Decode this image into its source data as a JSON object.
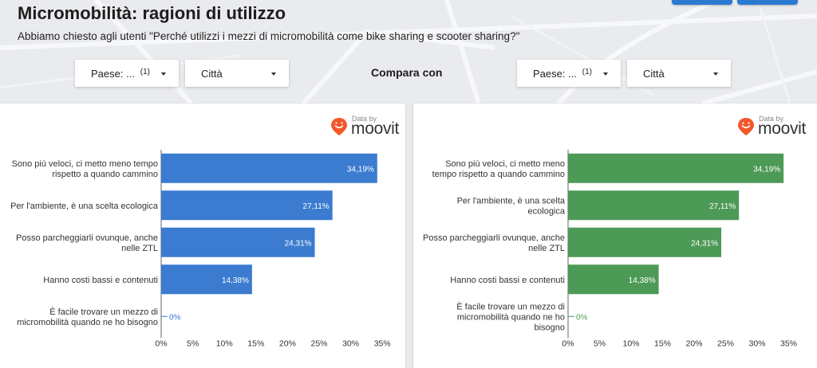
{
  "header": {
    "title": "Micromobilità: ragioni di utilizzo",
    "subtitle": "Abbiamo chiesto agli utenti \"Perché utilizzi i mezzi di micromobilità come bike sharing e scooter sharing?\""
  },
  "filters": {
    "left": {
      "country_label": "Paese: ...",
      "country_count": "(1)",
      "city_label": "Città"
    },
    "compare_label": "Compara con",
    "right": {
      "country_label": "Paese: ...",
      "country_count": "(1)",
      "city_label": "Città"
    }
  },
  "logo": {
    "data_by": "Data by",
    "brand": "moovit"
  },
  "colors": {
    "left_bar": "#3b7bd0",
    "right_bar": "#4d9a57",
    "logo_pin": "#f2592a"
  },
  "chart_data": [
    {
      "type": "bar",
      "orientation": "horizontal",
      "categories": [
        [
          "Sono più veloci, ci metto meno tempo",
          "rispetto a quando cammino"
        ],
        [
          "Per l'ambiente, è una scelta ecologica"
        ],
        [
          "Posso parcheggiarli ovunque, anche",
          "nelle ZTL"
        ],
        [
          "Hanno costi bassi e contenuti"
        ],
        [
          "È facile trovare un mezzo di",
          "micromobilità quando ne ho bisogno"
        ]
      ],
      "values": [
        34.19,
        27.11,
        24.31,
        14.38,
        0
      ],
      "data_labels": [
        "34,19%",
        "27,11%",
        "24,31%",
        "14,38%",
        "0%"
      ],
      "x_ticks": [
        "0%",
        "5%",
        "10%",
        "15%",
        "20%",
        "25%",
        "30%",
        "35%"
      ],
      "xlim": [
        0,
        35
      ],
      "color": "#3b7bd0"
    },
    {
      "type": "bar",
      "orientation": "horizontal",
      "categories": [
        [
          "Sono più veloci, ci metto meno",
          "tempo rispetto a quando cammino"
        ],
        [
          "Per l'ambiente, è una scelta",
          "ecologica"
        ],
        [
          "Posso parcheggiarli ovunque, anche",
          "nelle ZTL"
        ],
        [
          "Hanno costi bassi e contenuti"
        ],
        [
          "È facile trovare un mezzo di",
          "micromobilità quando ne ho",
          "bisogno"
        ]
      ],
      "values": [
        34.19,
        27.11,
        24.31,
        14.38,
        0
      ],
      "data_labels": [
        "34,19%",
        "27,11%",
        "24,31%",
        "14,38%",
        "0%"
      ],
      "x_ticks": [
        "0%",
        "5%",
        "10%",
        "15%",
        "20%",
        "25%",
        "30%",
        "35%"
      ],
      "xlim": [
        0,
        35
      ],
      "color": "#4d9a57"
    }
  ]
}
